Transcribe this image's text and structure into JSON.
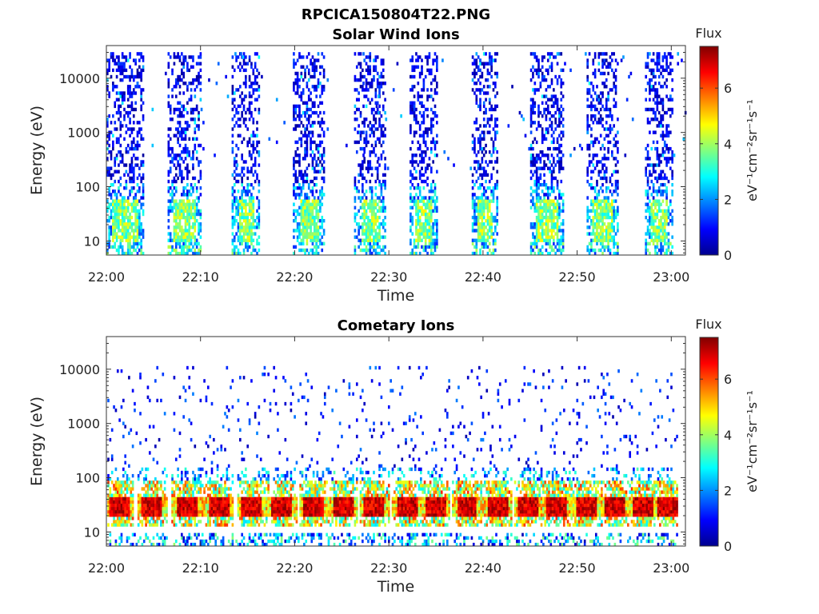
{
  "figure_title": "RPCICA150804T22.PNG",
  "chart_data": [
    {
      "type": "heatmap",
      "title": "Solar Wind Ions",
      "xlabel": "Time",
      "ylabel": "Energy (eV)",
      "x_ticks": [
        "22:00",
        "22:10",
        "22:20",
        "22:30",
        "22:40",
        "22:50",
        "23:00"
      ],
      "xlim_minutes": [
        0,
        61.5
      ],
      "y_scale": "log",
      "y_ticks": [
        "10",
        "100",
        "1000",
        "10000"
      ],
      "ylim": [
        5.5,
        40000
      ],
      "colorbar": {
        "title": "Flux",
        "unit": "eV⁻¹cm⁻²sr⁻¹s⁻¹",
        "ticks": [
          "0",
          "2",
          "4",
          "6"
        ],
        "range": [
          0,
          7.5
        ],
        "colormap": "jet"
      },
      "scan_periods_minutes": [
        [
          0,
          4
        ],
        [
          6.5,
          10
        ],
        [
          13.3,
          16.2
        ],
        [
          19.8,
          23
        ],
        [
          26.3,
          29.5
        ],
        [
          32.2,
          35.2
        ],
        [
          38.8,
          41.5
        ],
        [
          45,
          48.5
        ],
        [
          51,
          54.3
        ],
        [
          57.2,
          60.1
        ]
      ],
      "features": [
        {
          "energy_range_eV": [
            15,
            50
          ],
          "flux": 3.8,
          "description": "low-energy band in each scan"
        },
        {
          "energy_range_eV": [
            150,
            30000
          ],
          "flux": 0.8,
          "description": "sparse background counts"
        }
      ]
    },
    {
      "type": "heatmap",
      "title": "Cometary Ions",
      "xlabel": "Time",
      "ylabel": "Energy (eV)",
      "x_ticks": [
        "22:00",
        "22:10",
        "22:20",
        "22:30",
        "22:40",
        "22:50",
        "23:00"
      ],
      "xlim_minutes": [
        0,
        61.5
      ],
      "y_scale": "log",
      "y_ticks": [
        "10",
        "100",
        "1000",
        "10000"
      ],
      "ylim": [
        5.5,
        40000
      ],
      "colorbar": {
        "title": "Flux",
        "unit": "eV⁻¹cm⁻²sr⁻¹s⁻¹",
        "ticks": [
          "0",
          "2",
          "4",
          "6"
        ],
        "range": [
          0,
          7.5
        ],
        "colormap": "jet"
      },
      "blob_centers_minutes": [
        1.3,
        4.8,
        8.5,
        11.8,
        15.3,
        18.5,
        21.9,
        25,
        28.3,
        31.8,
        34.8,
        38.2,
        41.5,
        44.8,
        47.8,
        50.9,
        53.9,
        57,
        59.6
      ],
      "features": [
        {
          "energy_range_eV": [
            20,
            45
          ],
          "flux": 7.2,
          "description": "intense cometary ion band"
        },
        {
          "energy_range_eV": [
            12,
            90
          ],
          "flux": 4.5,
          "description": "band edges"
        },
        {
          "energy_range_eV": [
            150,
            12000
          ],
          "flux": 0.8,
          "description": "sparse high-energy counts"
        }
      ]
    }
  ]
}
